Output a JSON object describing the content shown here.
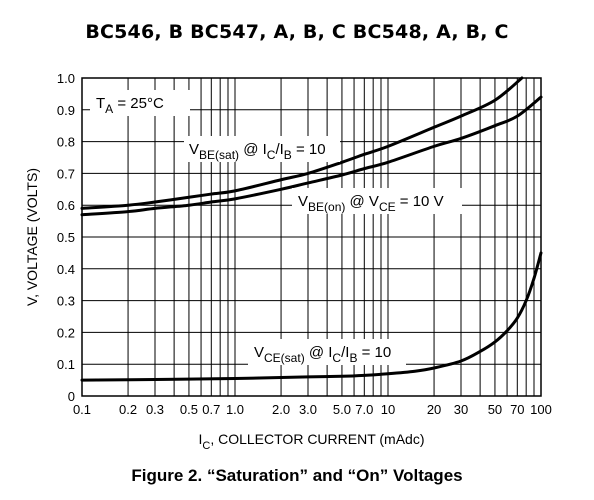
{
  "header": {
    "title": "BC546, B BC547, A, B, C BC548, A, B, C"
  },
  "caption": "Figure 2. “Saturation” and “On” Voltages",
  "chart_data": {
    "type": "line",
    "xscale": "log",
    "xlim": [
      0.1,
      100
    ],
    "ylim": [
      0,
      1.0
    ],
    "grid": true,
    "xlabel": {
      "main": "I",
      "sub": "C",
      "rest": ", COLLECTOR CURRENT (mAdc)"
    },
    "ylabel": "V, VOLTAGE (VOLTS)",
    "x_ticks": [
      {
        "value": 0.1,
        "label": "0.1"
      },
      {
        "value": 0.2,
        "label": "0.2"
      },
      {
        "value": 0.3,
        "label": "0.3"
      },
      {
        "value": 0.5,
        "label": "0.5"
      },
      {
        "value": 0.7,
        "label": "0.7"
      },
      {
        "value": 1.0,
        "label": "1.0"
      },
      {
        "value": 2.0,
        "label": "2.0"
      },
      {
        "value": 3.0,
        "label": "3.0"
      },
      {
        "value": 5.0,
        "label": "5.0"
      },
      {
        "value": 7.0,
        "label": "7.0"
      },
      {
        "value": 10,
        "label": "10"
      },
      {
        "value": 20,
        "label": "20"
      },
      {
        "value": 30,
        "label": "30"
      },
      {
        "value": 50,
        "label": "50"
      },
      {
        "value": 70,
        "label": "70"
      },
      {
        "value": 100,
        "label": "100"
      }
    ],
    "y_ticks": [
      {
        "value": 0,
        "label": "0"
      },
      {
        "value": 0.1,
        "label": "0.1"
      },
      {
        "value": 0.2,
        "label": "0.2"
      },
      {
        "value": 0.3,
        "label": "0.3"
      },
      {
        "value": 0.4,
        "label": "0.4"
      },
      {
        "value": 0.5,
        "label": "0.5"
      },
      {
        "value": 0.6,
        "label": "0.6"
      },
      {
        "value": 0.7,
        "label": "0.7"
      },
      {
        "value": 0.8,
        "label": "0.8"
      },
      {
        "value": 0.9,
        "label": "0.9"
      },
      {
        "value": 1.0,
        "label": "1.0"
      }
    ],
    "series": [
      {
        "id": "vbe-sat",
        "x": [
          0.1,
          0.2,
          0.3,
          0.5,
          0.7,
          1.0,
          2.0,
          3.0,
          5.0,
          7.0,
          10,
          20,
          30,
          50,
          75
        ],
        "y": [
          0.59,
          0.6,
          0.61,
          0.625,
          0.635,
          0.645,
          0.68,
          0.7,
          0.735,
          0.76,
          0.785,
          0.845,
          0.88,
          0.93,
          1.0
        ]
      },
      {
        "id": "vbe-on",
        "x": [
          0.1,
          0.2,
          0.3,
          0.5,
          0.7,
          1.0,
          2.0,
          3.0,
          5.0,
          7.0,
          10,
          20,
          30,
          50,
          70,
          100
        ],
        "y": [
          0.57,
          0.58,
          0.59,
          0.6,
          0.61,
          0.62,
          0.65,
          0.67,
          0.695,
          0.715,
          0.735,
          0.785,
          0.81,
          0.85,
          0.88,
          0.94
        ]
      },
      {
        "id": "vce-sat",
        "x": [
          0.1,
          0.3,
          1.0,
          2.0,
          3.0,
          5.0,
          7.0,
          10,
          15,
          20,
          30,
          40,
          50,
          60,
          70,
          80,
          90,
          100
        ],
        "y": [
          0.05,
          0.052,
          0.055,
          0.058,
          0.06,
          0.062,
          0.065,
          0.07,
          0.078,
          0.088,
          0.11,
          0.14,
          0.17,
          0.205,
          0.245,
          0.3,
          0.37,
          0.45
        ]
      }
    ],
    "annotations": [
      {
        "id": "ta",
        "main": "T",
        "sub": "A",
        "rest": " = 25°C"
      },
      {
        "id": "vbe-sat-label",
        "parts": [
          [
            "V",
            ""
          ],
          [
            "BE(sat)",
            "sub"
          ],
          [
            " @ I",
            ""
          ],
          [
            "C",
            "sub"
          ],
          [
            "/I",
            ""
          ],
          [
            "B",
            "sub"
          ],
          [
            " = 10",
            ""
          ]
        ]
      },
      {
        "id": "vbe-on-label",
        "parts": [
          [
            "V",
            ""
          ],
          [
            "BE(on)",
            "sub"
          ],
          [
            " @ V",
            ""
          ],
          [
            "CE",
            "sub"
          ],
          [
            " = 10 V",
            ""
          ]
        ]
      },
      {
        "id": "vce-sat-label",
        "parts": [
          [
            "V",
            ""
          ],
          [
            "CE(sat)",
            "sub"
          ],
          [
            " @ I",
            ""
          ],
          [
            "C",
            "sub"
          ],
          [
            "/I",
            ""
          ],
          [
            "B",
            "sub"
          ],
          [
            " = 10",
            ""
          ]
        ]
      }
    ]
  }
}
